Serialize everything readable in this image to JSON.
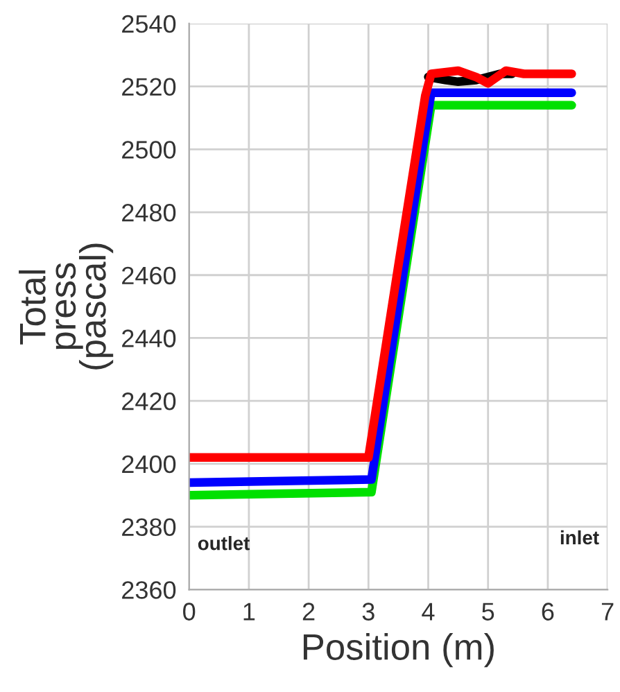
{
  "chart_data": {
    "type": "line",
    "xlabel": "Position (m)",
    "ylabel": "Total\npress\n(pascal)",
    "xlim": [
      0,
      7
    ],
    "xticks": [
      0,
      1,
      2,
      3,
      4,
      5,
      6,
      7
    ],
    "ylim": [
      2360,
      2540
    ],
    "yticks": [
      2360,
      2380,
      2400,
      2420,
      2440,
      2460,
      2480,
      2500,
      2520,
      2540
    ],
    "grid": true,
    "marker": "none",
    "line_style": "solid",
    "series": [
      {
        "color": "#00e000",
        "x": [
          0,
          3.05,
          4.05,
          6.4
        ],
        "values": [
          2390,
          2391,
          2514,
          2514
        ]
      },
      {
        "color": "#0000ff",
        "x": [
          0,
          3.05,
          4.05,
          6.4
        ],
        "values": [
          2394,
          2395,
          2518,
          2518
        ]
      },
      {
        "color": "#000000",
        "x": [
          4.0,
          4.3,
          4.5,
          4.8,
          5.0,
          5.2,
          5.4
        ],
        "values": [
          2523,
          2522,
          2521.5,
          2522,
          2523,
          2524,
          2524
        ]
      },
      {
        "color": "#ff0000",
        "x": [
          0,
          3.0,
          3.5,
          3.95,
          4.05,
          4.5,
          4.8,
          5.0,
          5.3,
          5.6,
          6.4
        ],
        "values": [
          2402,
          2402,
          2463,
          2517,
          2524,
          2525,
          2523,
          2521,
          2525,
          2524,
          2524
        ]
      }
    ],
    "annotations": [
      "outlet",
      "inlet"
    ]
  }
}
